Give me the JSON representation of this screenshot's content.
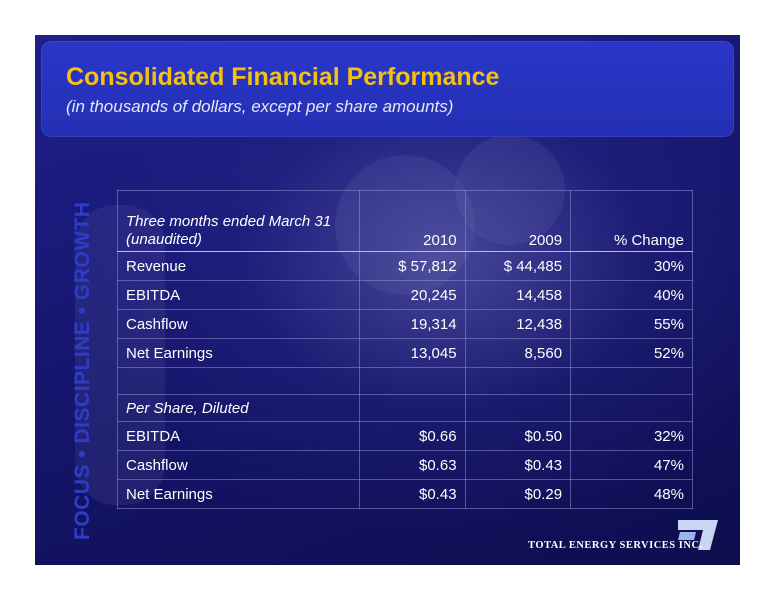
{
  "slide": {
    "title": "Consolidated Financial Performance",
    "subtitle": "(in thousands of dollars, except per share amounts)",
    "tagline": "FOCUS • DISCIPLINE • GROWTH",
    "colors": {
      "title": "#f5c010",
      "header_box": "#2330b4",
      "background": "#16166e",
      "tagline": "#2e3cc8"
    }
  },
  "table": {
    "period_label_line1": "Three months ended March 31",
    "period_label_line2": "(unaudited)",
    "columns": [
      "2010",
      "2009",
      "% Change"
    ],
    "rows": [
      {
        "label": "Revenue",
        "v2010": "$ 57,812",
        "v2009": "$ 44,485",
        "change": "30%"
      },
      {
        "label": "EBITDA",
        "v2010": "20,245",
        "v2009": "14,458",
        "change": "40%"
      },
      {
        "label": "Cashflow",
        "v2010": "19,314",
        "v2009": "12,438",
        "change": "55%"
      },
      {
        "label": "Net Earnings",
        "v2010": "13,045",
        "v2009": "8,560",
        "change": "52%"
      }
    ],
    "per_share_label": "Per Share, Diluted",
    "per_share_rows": [
      {
        "label": "EBITDA",
        "v2010": "$0.66",
        "v2009": "$0.50",
        "change": "32%"
      },
      {
        "label": "Cashflow",
        "v2010": "$0.63",
        "v2009": "$0.43",
        "change": "47%"
      },
      {
        "label": "Net Earnings",
        "v2010": "$0.43",
        "v2009": "$0.29",
        "change": "48%"
      }
    ]
  },
  "logo": {
    "text": "TOTAL ENERGY SERVICES INC.",
    "icon": "total-energy-logo-icon"
  }
}
